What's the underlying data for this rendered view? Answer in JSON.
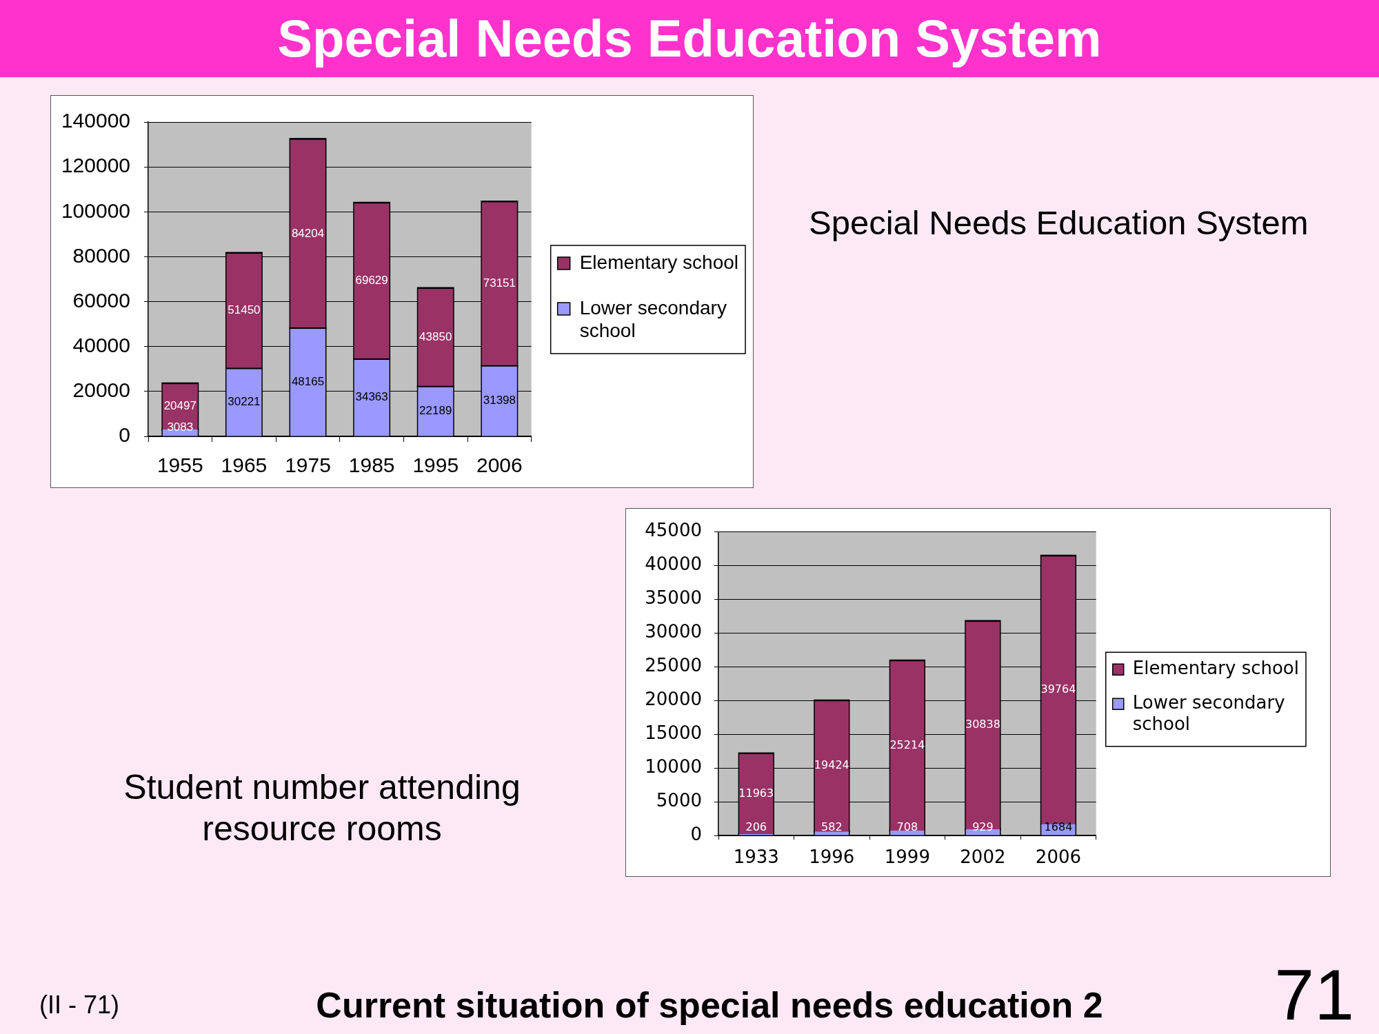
{
  "chart_data": [
    {
      "type": "bar",
      "title": "Special Needs Education System",
      "annotations": [
        "Special Needs Education System"
      ],
      "categories": [
        "1955",
        "1965",
        "1975",
        "1985",
        "1995",
        "2006"
      ],
      "series": [
        {
          "name": "Lower secondary school",
          "color": "#9999ff",
          "values": [
            3083,
            30221,
            48165,
            34363,
            22189,
            31398
          ]
        },
        {
          "name": "Elementary school",
          "color": "#993366",
          "values": [
            20497,
            51450,
            84204,
            69629,
            43850,
            73151
          ]
        }
      ],
      "stacked": true,
      "ylim": [
        0,
        140000
      ],
      "yticks": [
        0,
        20000,
        40000,
        60000,
        80000,
        100000,
        120000,
        140000
      ],
      "grid": "y",
      "legend": "right",
      "data_labels": true
    },
    {
      "type": "bar",
      "title": "Student number attending resource rooms",
      "categories": [
        "1933",
        "1996",
        "1999",
        "2002",
        "2006"
      ],
      "series": [
        {
          "name": "Lower secondary school",
          "color": "#9999ff",
          "values": [
            206,
            582,
            708,
            929,
            1684
          ]
        },
        {
          "name": "Elementary school",
          "color": "#993366",
          "values": [
            11963,
            19424,
            25214,
            30838,
            39764
          ]
        }
      ],
      "stacked": true,
      "ylim": [
        0,
        45000
      ],
      "yticks": [
        0,
        5000,
        10000,
        15000,
        20000,
        25000,
        30000,
        35000,
        40000,
        45000
      ],
      "grid": "y",
      "legend": "right",
      "data_labels": true,
      "annotations": [
        "(II - 71)",
        "Current situation of special needs education 2",
        "71"
      ]
    }
  ]
}
